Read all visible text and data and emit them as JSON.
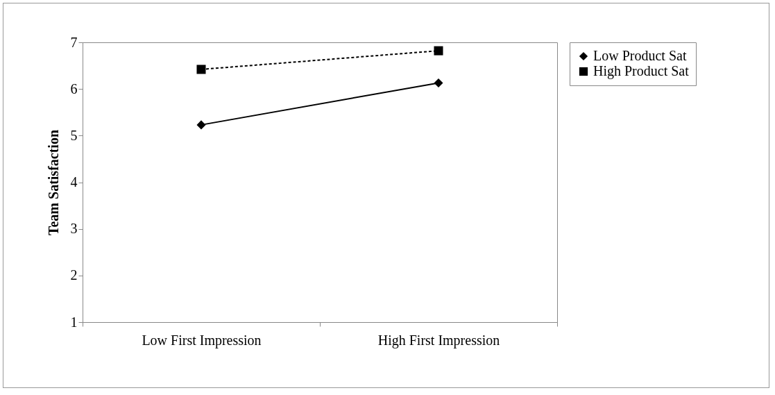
{
  "chart_data": {
    "type": "line",
    "ylabel": "Team Satisfaction",
    "categories": [
      "Low First Impression",
      "High First Impression"
    ],
    "series": [
      {
        "name": "Low Product Sat",
        "color": "#000000",
        "values": [
          5.23,
          6.13
        ],
        "marker": "diamond",
        "line_style": "solid"
      },
      {
        "name": "High Product Sat",
        "color": "#000000",
        "values": [
          6.42,
          6.82
        ],
        "marker": "square",
        "line_style": "dashed"
      }
    ],
    "ylim": [
      1,
      7
    ],
    "yticks": [
      1,
      2,
      3,
      4,
      5,
      6,
      7
    ],
    "grid": false,
    "legend": "right"
  }
}
